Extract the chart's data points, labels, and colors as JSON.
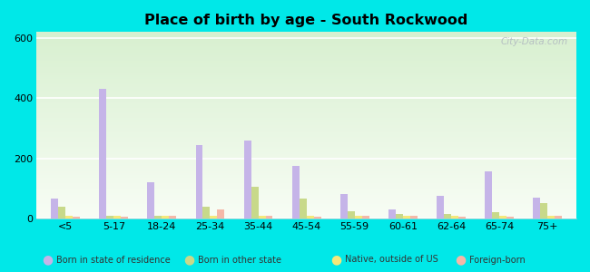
{
  "title": "Place of birth by age - South Rockwood",
  "categories": [
    "<5",
    "5-17",
    "18-24",
    "25-34",
    "35-44",
    "45-54",
    "55-59",
    "60-61",
    "62-64",
    "65-74",
    "75+"
  ],
  "series": {
    "Born in state of residence": [
      65,
      430,
      120,
      245,
      260,
      175,
      80,
      30,
      75,
      155,
      70
    ],
    "Born in other state": [
      40,
      10,
      10,
      40,
      105,
      65,
      25,
      15,
      15,
      20,
      50
    ],
    "Native, outside of US": [
      8,
      8,
      8,
      8,
      8,
      8,
      8,
      8,
      8,
      8,
      8
    ],
    "Foreign-born": [
      5,
      5,
      10,
      30,
      10,
      5,
      10,
      10,
      5,
      5,
      10
    ]
  },
  "colors": {
    "Born in state of residence": "#c5b4e8",
    "Born in other state": "#c8d98a",
    "Native, outside of US": "#f5e87a",
    "Foreign-born": "#f5b8a8"
  },
  "ylim": [
    0,
    620
  ],
  "yticks": [
    0,
    200,
    400,
    600
  ],
  "outer_background": "#00e8e8",
  "plot_bg_top": "#d8f0d0",
  "plot_bg_bottom": "#f8fdf5",
  "bar_width": 0.15,
  "watermark": "City-Data.com"
}
